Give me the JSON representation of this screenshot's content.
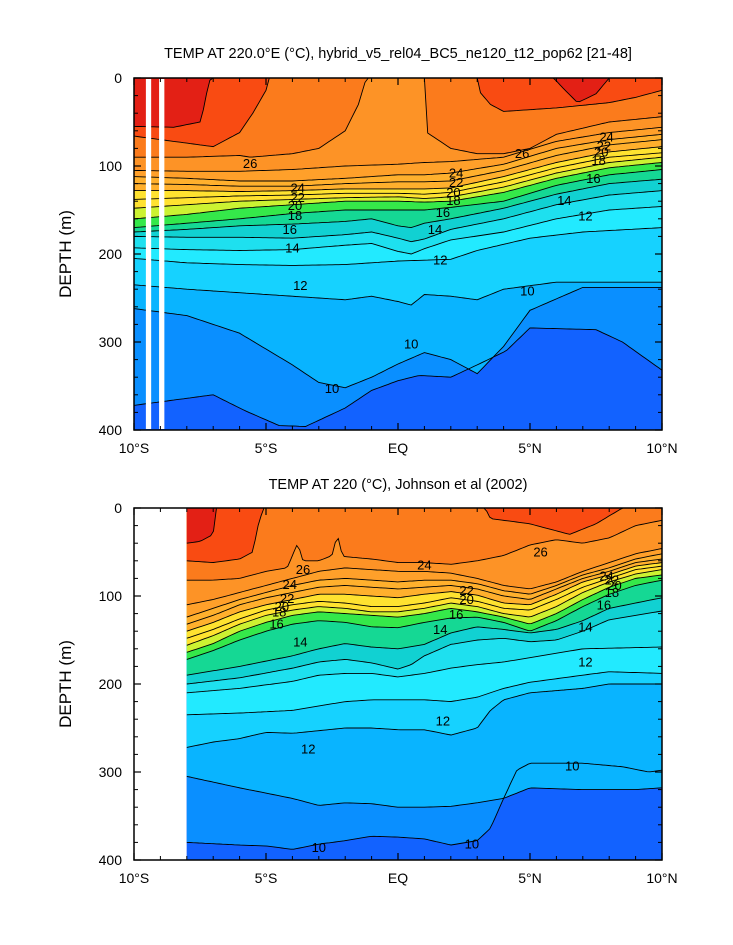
{
  "chart_data": [
    {
      "type": "heatmap",
      "subtype": "filled-contour depth-latitude section",
      "title": "TEMP AT 220.0°E (°C), hybrid_v5_rel04_BC5_ne120_t12_pop62 [21-48]",
      "ylabel": "DEPTH (m)",
      "xlabel": "",
      "x_ticks": [
        "10°S",
        "5°S",
        "EQ",
        "5°N",
        "10°N"
      ],
      "y_ticks": [
        "0",
        "100",
        "200",
        "300",
        "400"
      ],
      "xlim": [
        -10,
        10
      ],
      "ylim": [
        400,
        0
      ],
      "x_data_start": -10,
      "data_gaps_x": [
        [
          -9.55,
          -9.35
        ],
        [
          -9.05,
          -8.85
        ]
      ],
      "y_reversed": true,
      "contour_levels": [
        10,
        11,
        12,
        13,
        14,
        15,
        16,
        17,
        18,
        19,
        20,
        21,
        22,
        23,
        24,
        25,
        26,
        27,
        28
      ],
      "contour_labels": [
        {
          "text": "26",
          "x": -5.6,
          "y": 97
        },
        {
          "text": "26",
          "x": 4.7,
          "y": 86
        },
        {
          "text": "24",
          "x": -3.8,
          "y": 125
        },
        {
          "text": "24",
          "x": 2.2,
          "y": 108
        },
        {
          "text": "24",
          "x": 7.9,
          "y": 67
        },
        {
          "text": "22",
          "x": -3.8,
          "y": 136
        },
        {
          "text": "22",
          "x": 2.2,
          "y": 119
        },
        {
          "text": "22",
          "x": 7.8,
          "y": 77
        },
        {
          "text": "20",
          "x": -3.9,
          "y": 145
        },
        {
          "text": "20",
          "x": 2.1,
          "y": 130
        },
        {
          "text": "20",
          "x": 7.7,
          "y": 84
        },
        {
          "text": "18",
          "x": -3.9,
          "y": 156
        },
        {
          "text": "18",
          "x": 2.1,
          "y": 139
        },
        {
          "text": "18",
          "x": 7.6,
          "y": 94
        },
        {
          "text": "16",
          "x": -4.1,
          "y": 172
        },
        {
          "text": "16",
          "x": 1.7,
          "y": 153
        },
        {
          "text": "16",
          "x": 7.4,
          "y": 114
        },
        {
          "text": "14",
          "x": -4.0,
          "y": 193
        },
        {
          "text": "14",
          "x": 1.4,
          "y": 172
        },
        {
          "text": "14",
          "x": 6.3,
          "y": 139
        },
        {
          "text": "12",
          "x": -3.7,
          "y": 236
        },
        {
          "text": "12",
          "x": 1.6,
          "y": 207
        },
        {
          "text": "12",
          "x": 7.1,
          "y": 157
        },
        {
          "text": "10",
          "x": 0.5,
          "y": 302
        },
        {
          "text": "10",
          "x": 4.9,
          "y": 242
        },
        {
          "text": "10",
          "x": -2.5,
          "y": 353
        }
      ]
    },
    {
      "type": "heatmap",
      "subtype": "filled-contour depth-latitude section",
      "title": "TEMP AT 220 (°C), Johnson et al (2002)",
      "ylabel": "DEPTH (m)",
      "xlabel": "",
      "x_ticks": [
        "10°S",
        "5°S",
        "EQ",
        "5°N",
        "10°N"
      ],
      "y_ticks": [
        "0",
        "100",
        "200",
        "300",
        "400"
      ],
      "xlim": [
        -10,
        10
      ],
      "ylim": [
        400,
        0
      ],
      "x_data_start": -8,
      "data_gaps_x": [],
      "y_reversed": true,
      "contour_levels": [
        10,
        11,
        12,
        13,
        14,
        15,
        16,
        17,
        18,
        19,
        20,
        21,
        22,
        23,
        24,
        25,
        26,
        27,
        28
      ],
      "contour_labels": [
        {
          "text": "26",
          "x": -3.6,
          "y": 70
        },
        {
          "text": "26",
          "x": 5.4,
          "y": 50
        },
        {
          "text": "24",
          "x": -4.1,
          "y": 87
        },
        {
          "text": "24",
          "x": 1.0,
          "y": 65
        },
        {
          "text": "24",
          "x": 7.9,
          "y": 77
        },
        {
          "text": "22",
          "x": -4.2,
          "y": 103
        },
        {
          "text": "22",
          "x": 2.6,
          "y": 94
        },
        {
          "text": "22",
          "x": 8.1,
          "y": 82
        },
        {
          "text": "20",
          "x": -4.4,
          "y": 112
        },
        {
          "text": "20",
          "x": 2.6,
          "y": 104
        },
        {
          "text": "20",
          "x": 8.2,
          "y": 88
        },
        {
          "text": "18",
          "x": -4.5,
          "y": 118
        },
        {
          "text": "18",
          "x": 8.1,
          "y": 96
        },
        {
          "text": "16",
          "x": -4.6,
          "y": 132
        },
        {
          "text": "16",
          "x": 2.2,
          "y": 121
        },
        {
          "text": "16",
          "x": 7.8,
          "y": 110
        },
        {
          "text": "14",
          "x": -3.7,
          "y": 152
        },
        {
          "text": "14",
          "x": 1.6,
          "y": 138
        },
        {
          "text": "14",
          "x": 7.1,
          "y": 135
        },
        {
          "text": "12",
          "x": 1.7,
          "y": 242
        },
        {
          "text": "12",
          "x": -3.4,
          "y": 274
        },
        {
          "text": "12",
          "x": 7.1,
          "y": 175
        },
        {
          "text": "10",
          "x": 6.6,
          "y": 293
        },
        {
          "text": "10",
          "x": -3.0,
          "y": 386
        },
        {
          "text": "10",
          "x": 2.8,
          "y": 382
        }
      ]
    }
  ]
}
